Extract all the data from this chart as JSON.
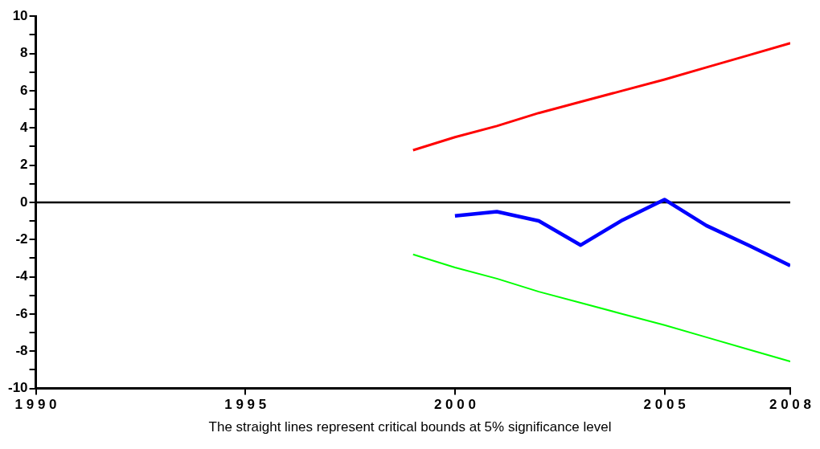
{
  "chart_data": {
    "type": "line",
    "x": [
      1999,
      2000,
      2001,
      2002,
      2003,
      2004,
      2005,
      2006,
      2007,
      2008
    ],
    "series": [
      {
        "color": "#ff0000",
        "values": [
          2.8,
          3.5,
          4.1,
          4.8,
          5.4,
          6.0,
          6.6,
          7.25,
          7.9,
          8.55
        ]
      },
      {
        "color": "#00ff00",
        "values": [
          -2.8,
          -3.5,
          -4.1,
          -4.8,
          -5.4,
          -6.0,
          -6.6,
          -7.25,
          -7.9,
          -8.55
        ]
      },
      {
        "color": "#0000ff",
        "x": [
          2000,
          2001,
          2002,
          2003,
          2004,
          2005,
          2006,
          2007,
          2008
        ],
        "values": [
          -0.73,
          -0.5,
          -1.0,
          -2.3,
          -0.95,
          0.15,
          -1.25,
          -2.3,
          -3.4
        ]
      }
    ],
    "xlim": [
      1990,
      2008
    ],
    "xticks": [
      1990,
      1995,
      2000,
      2005,
      2008
    ],
    "ylim": [
      -10,
      10
    ],
    "yticks": [
      -10,
      {
        "value": -9,
        "label": null
      },
      -8,
      {
        "value": -7,
        "label": null
      },
      -6,
      {
        "value": -5,
        "label": null
      },
      -4,
      {
        "value": -3,
        "label": null
      },
      -2,
      {
        "value": -1,
        "label": null
      },
      0,
      {
        "value": 1,
        "label": null
      },
      2,
      {
        "value": 3,
        "label": null
      },
      4,
      {
        "value": 5,
        "label": null
      },
      6,
      {
        "value": 7,
        "label": null
      },
      8,
      {
        "value": 9,
        "label": null
      },
      10
    ],
    "ref_lines": [
      {
        "axis": "y",
        "value": 0,
        "color": "#000000"
      }
    ],
    "grid": false,
    "legend": false,
    "marker": "none",
    "line_style": "solid",
    "annotations": [
      "The straight lines represent critical bounds at 5% significance level"
    ]
  }
}
